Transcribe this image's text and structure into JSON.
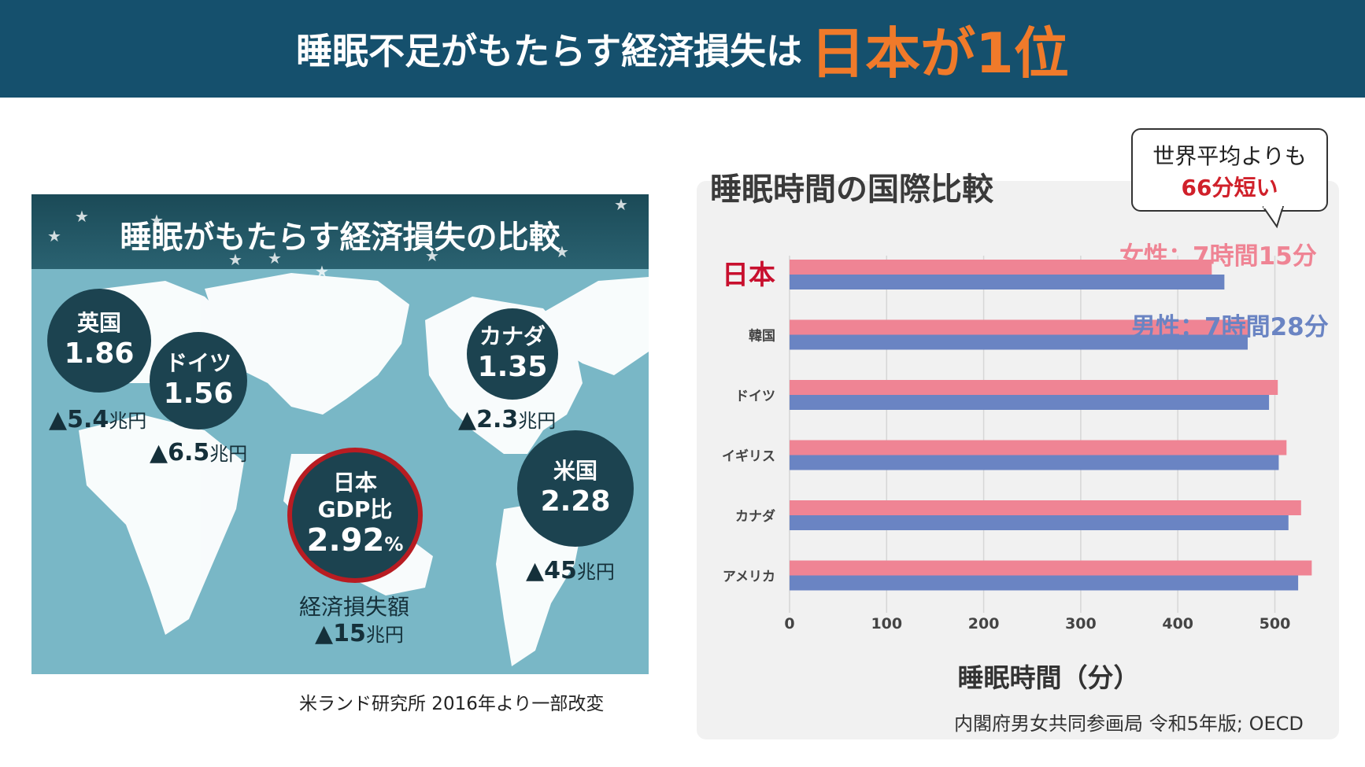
{
  "header": {
    "title_main": "睡眠不足がもたらす経済損失は",
    "title_highlight": "日本が1位"
  },
  "left_panel": {
    "title": "睡眠がもたらす経済損失の比較",
    "source": "米ランド研究所 2016年より一部改変",
    "countries": [
      {
        "name": "英国",
        "value": "1.86",
        "loss": "▲5.4",
        "unit": "兆円"
      },
      {
        "name": "ドイツ",
        "value": "1.56",
        "loss": "▲6.5",
        "unit": "兆円"
      },
      {
        "name": "カナダ",
        "value": "1.35",
        "loss": "▲2.3",
        "unit": "兆円"
      },
      {
        "name": "米国",
        "value": "2.28",
        "loss": "▲45",
        "unit": "兆円"
      }
    ],
    "japan": {
      "name": "日本",
      "sub": "GDP比",
      "value": "2.92",
      "pct": "%",
      "loss_label": "経済損失額",
      "loss": "▲15",
      "unit": "兆円"
    }
  },
  "callout": {
    "line1": "世界平均よりも",
    "line2": "66分短い"
  },
  "legend": {
    "female": "女性：7時間15分",
    "male": "男性：7時間28分"
  },
  "chart_data": {
    "type": "bar",
    "orientation": "horizontal",
    "title": "睡眠時間の国際比較",
    "xlabel": "睡眠時間（分）",
    "xlim": [
      0,
      540
    ],
    "xticks": [
      0,
      100,
      200,
      300,
      400,
      500
    ],
    "categories": [
      "日本",
      "韓国",
      "ドイツ",
      "イギリス",
      "カナダ",
      "アメリカ"
    ],
    "series": [
      {
        "name": "女性",
        "color": "#ef8494",
        "values": [
          435,
          472,
          503,
          512,
          527,
          538
        ]
      },
      {
        "name": "男性",
        "color": "#6a84c3",
        "values": [
          448,
          472,
          494,
          504,
          514,
          524
        ]
      }
    ],
    "highlight_category": "日本",
    "highlight_color": "#c8102e",
    "grid": true
  },
  "right_source": "内閣府男女共同参画局 令和5年版; OECD"
}
